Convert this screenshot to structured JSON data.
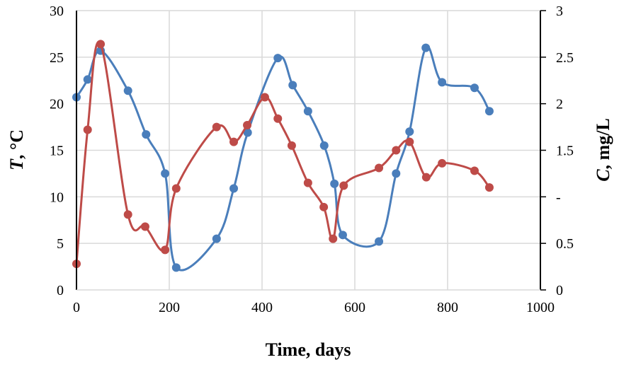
{
  "chart_data": {
    "type": "line",
    "xlabel": "Time, days",
    "ylabel_left_italic": "T",
    "ylabel_left_rest": ", °C",
    "ylabel_right_italic": "C",
    "ylabel_right_rest": ", mg/L",
    "xlim": [
      0,
      1000
    ],
    "ylim_left": [
      0,
      30
    ],
    "ylim_right": [
      0,
      3
    ],
    "x_ticks": [
      "0",
      "200",
      "400",
      "600",
      "800",
      "1000"
    ],
    "y_left_ticks": [
      "0",
      "5",
      "10",
      "15",
      "20",
      "25",
      "30"
    ],
    "y_right_ticks": [
      "0",
      "0.5",
      "-",
      "1.5",
      "2",
      "2.5",
      "3"
    ],
    "grid": true,
    "series": [
      {
        "name": "T",
        "axis": "left",
        "color": "#4A7EBB",
        "x": [
          0,
          24,
          52,
          111,
          150,
          191,
          215,
          302,
          339,
          369,
          434,
          466,
          499,
          534,
          556,
          574,
          652,
          689,
          718,
          753,
          788,
          858,
          890
        ],
        "y": [
          20.7,
          22.6,
          25.7,
          21.4,
          16.7,
          12.5,
          2.4,
          5.5,
          10.9,
          16.9,
          24.9,
          22.0,
          19.2,
          15.5,
          11.4,
          5.9,
          5.2,
          12.5,
          17.0,
          26.0,
          22.3,
          21.7,
          19.2
        ]
      },
      {
        "name": "C",
        "axis": "right",
        "color": "#BE4B48",
        "x": [
          0,
          24,
          52,
          111,
          148,
          191,
          215,
          302,
          339,
          368,
          406,
          434,
          464,
          499,
          533,
          553,
          576,
          652,
          689,
          718,
          754,
          788,
          858,
          890
        ],
        "y": [
          0.28,
          1.72,
          2.64,
          0.81,
          0.68,
          0.43,
          1.09,
          1.75,
          1.59,
          1.77,
          2.07,
          1.84,
          1.55,
          1.15,
          0.89,
          0.55,
          1.12,
          1.31,
          1.5,
          1.59,
          1.21,
          1.36,
          1.28,
          1.1
        ]
      }
    ]
  }
}
